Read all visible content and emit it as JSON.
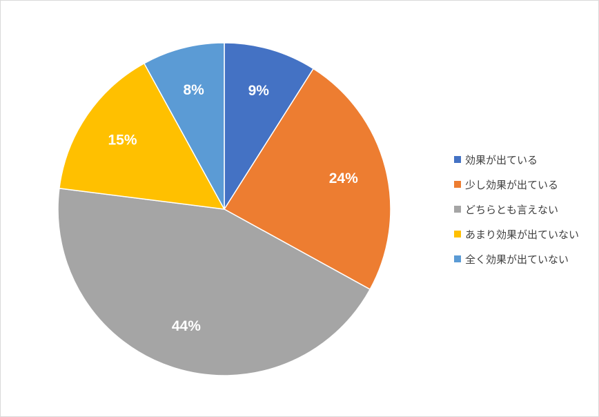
{
  "chart_data": {
    "type": "pie",
    "title": "",
    "categories": [
      "効果が出ている",
      "少し効果が出ている",
      "どちらとも言えない",
      "あまり効果が出ていない",
      "全く効果が出ていない"
    ],
    "values": [
      9,
      24,
      44,
      15,
      8
    ],
    "data_labels": [
      "9%",
      "24%",
      "44%",
      "15%",
      "8%"
    ],
    "colors": [
      "#4472c4",
      "#ed7d31",
      "#a5a5a5",
      "#ffc000",
      "#5b9bd5"
    ],
    "start_angle_deg": 0,
    "direction": "clockwise",
    "legend_position": "right"
  }
}
